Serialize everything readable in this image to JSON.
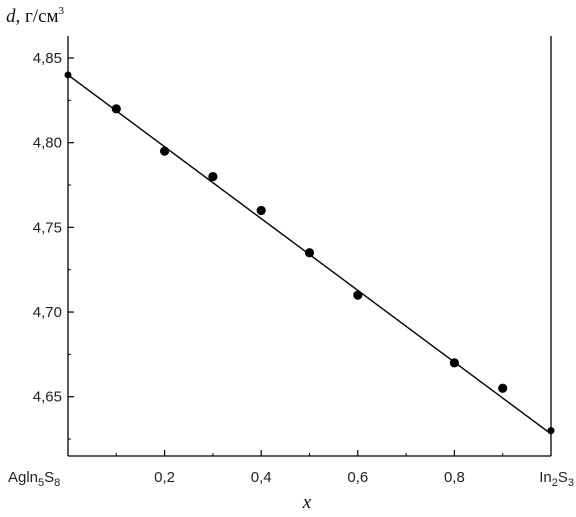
{
  "chart_data": {
    "type": "scatter",
    "title": "",
    "ylabel": {
      "var": "d",
      "unit_prefix": ", г/см",
      "unit_sup": "3"
    },
    "xlabel": "x",
    "xlim": [
      0,
      1
    ],
    "ylim": [
      4.615,
      4.863
    ],
    "grid": false,
    "x_ticks": [
      {
        "x": 0.0,
        "label": "AgIn5S8",
        "parts": [
          [
            "Agln",
            false
          ],
          [
            "5",
            true
          ],
          [
            "S",
            false
          ],
          [
            "8",
            true
          ]
        ]
      },
      {
        "x": 0.2,
        "label": "0,2"
      },
      {
        "x": 0.4,
        "label": "0,4"
      },
      {
        "x": 0.6,
        "label": "0,6"
      },
      {
        "x": 0.8,
        "label": "0,8"
      },
      {
        "x": 1.0,
        "label": "In2S3",
        "parts": [
          [
            "In",
            false
          ],
          [
            "2",
            true
          ],
          [
            "S",
            false
          ],
          [
            "3",
            true
          ]
        ]
      }
    ],
    "y_ticks": [
      {
        "y": 4.65,
        "label": "4,65"
      },
      {
        "y": 4.7,
        "label": "4,70"
      },
      {
        "y": 4.75,
        "label": "4,75"
      },
      {
        "y": 4.8,
        "label": "4,80"
      },
      {
        "y": 4.85,
        "label": "4,85"
      }
    ],
    "series": [
      {
        "x": [
          0.0,
          0.1,
          0.2,
          0.3,
          0.4,
          0.5,
          0.6,
          0.8,
          0.9,
          1.0
        ],
        "y": [
          4.84,
          4.82,
          4.795,
          4.78,
          4.76,
          4.735,
          4.71,
          4.67,
          4.655,
          4.63
        ]
      }
    ],
    "fit_line": {
      "x": [
        0.0,
        1.0
      ],
      "y": [
        4.84,
        4.628
      ]
    }
  }
}
